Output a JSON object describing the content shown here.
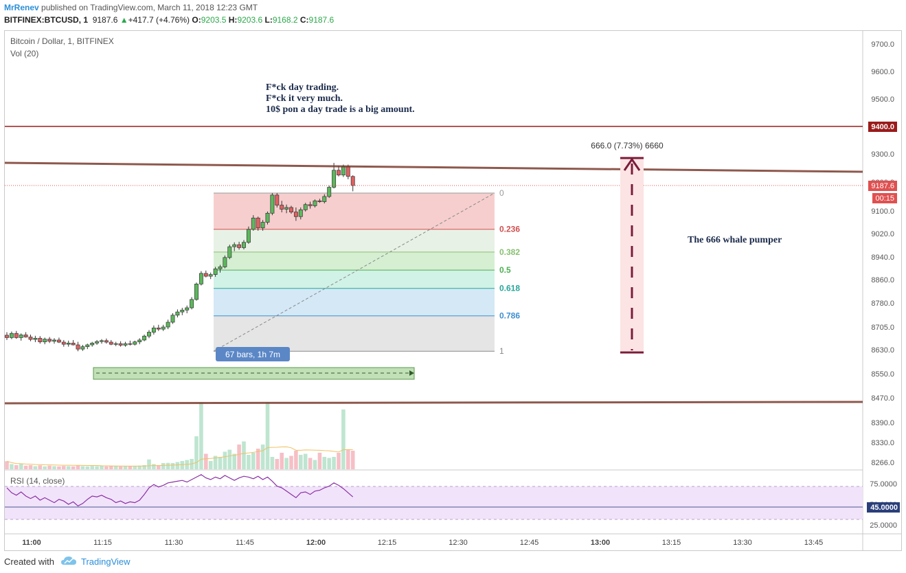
{
  "header": {
    "user": "MrRenev",
    "published": "published on TradingView.com, March 11, 2018 12:23 GMT",
    "symbol": "BITFINEX:BTCUSD, 1",
    "last": "9187.6",
    "arrow": "▲",
    "change": "+417.7 (+4.76%)",
    "o_label": "O:",
    "o_val": "9203.5",
    "h_label": "H:",
    "h_val": "9203.6",
    "l_label": "L:",
    "l_val": "9168.2",
    "c_label": "C:",
    "c_val": "9187.6"
  },
  "legend": {
    "title": "Bitcoin / Dollar, 1, BITFINEX",
    "vol": "Vol (20)",
    "rsi": "RSI (14, close)"
  },
  "annotations": {
    "note_lines": [
      "F*ck day trading.",
      "F*ck it very much.",
      "10$ pon a day trade is a big amount."
    ],
    "whale": "The 666 whale pumper",
    "measure": "666.0 (7.73%) 6660",
    "bars_range": "67 bars, 1h 7m"
  },
  "price_labels": {
    "resistance": "9400.0",
    "last": "9187.6",
    "countdown": "00:15",
    "rsi_value": "45.0000"
  },
  "fib": [
    {
      "level": "0",
      "color": "#999999"
    },
    {
      "level": "0.236",
      "color": "#d05050"
    },
    {
      "level": "0.382",
      "color": "#88c070"
    },
    {
      "level": "0.5",
      "color": "#4caf50"
    },
    {
      "level": "0.618",
      "color": "#26a69a"
    },
    {
      "level": "0.786",
      "color": "#3d8fd1"
    },
    {
      "level": "1",
      "color": "#888888"
    }
  ],
  "footer": {
    "created": "Created with",
    "brand": "TradingView"
  },
  "chart_data": {
    "type": "candlestick",
    "price_axis": {
      "ticks": [
        {
          "label": "9700.0",
          "v": 9700
        },
        {
          "label": "9600.0",
          "v": 9600
        },
        {
          "label": "9500.0",
          "v": 9500
        },
        {
          "label": "9300.0",
          "v": 9300
        },
        {
          "label": "9200.0",
          "v": 9200
        },
        {
          "label": "9100.0",
          "v": 9100
        },
        {
          "label": "9020.0",
          "v": 9020
        },
        {
          "label": "8940.0",
          "v": 8940
        },
        {
          "label": "8860.0",
          "v": 8860
        },
        {
          "label": "8780.0",
          "v": 8780
        },
        {
          "label": "8705.0",
          "v": 8705
        },
        {
          "label": "8630.0",
          "v": 8630
        },
        {
          "label": "8550.0",
          "v": 8550
        },
        {
          "label": "8470.0",
          "v": 8470
        },
        {
          "label": "8390.0",
          "v": 8390
        },
        {
          "label": "8330.0",
          "v": 8330
        },
        {
          "label": "8266.0",
          "v": 8266
        }
      ]
    },
    "rsi_axis": {
      "ticks": [
        {
          "label": "75.0000",
          "v": 75
        },
        {
          "label": "50.0000",
          "v": 50
        },
        {
          "label": "25.0000",
          "v": 25
        }
      ]
    },
    "time_axis": {
      "ticks": [
        {
          "label": "11:00",
          "t": 0,
          "bold": true
        },
        {
          "label": "11:15",
          "t": 15
        },
        {
          "label": "11:30",
          "t": 30
        },
        {
          "label": "11:45",
          "t": 45
        },
        {
          "label": "12:00",
          "t": 60,
          "bold": true
        },
        {
          "label": "12:15",
          "t": 75
        },
        {
          "label": "12:30",
          "t": 90
        },
        {
          "label": "12:45",
          "t": 105
        },
        {
          "label": "13:00",
          "t": 120,
          "bold": true
        },
        {
          "label": "13:15",
          "t": 135
        },
        {
          "label": "13:30",
          "t": 150
        },
        {
          "label": "13:45",
          "t": 165
        }
      ]
    },
    "candles": [
      [
        0,
        8678,
        8688,
        8662,
        8670
      ],
      [
        1,
        8670,
        8690,
        8665,
        8684
      ],
      [
        2,
        8684,
        8692,
        8666,
        8670
      ],
      [
        3,
        8670,
        8684,
        8660,
        8679
      ],
      [
        4,
        8679,
        8688,
        8670,
        8672
      ],
      [
        5,
        8672,
        8680,
        8658,
        8664
      ],
      [
        6,
        8664,
        8676,
        8655,
        8668
      ],
      [
        7,
        8668,
        8675,
        8650,
        8656
      ],
      [
        8,
        8656,
        8670,
        8648,
        8665
      ],
      [
        9,
        8665,
        8672,
        8652,
        8658
      ],
      [
        10,
        8658,
        8668,
        8650,
        8662
      ],
      [
        11,
        8662,
        8670,
        8652,
        8655
      ],
      [
        12,
        8655,
        8662,
        8640,
        8648
      ],
      [
        13,
        8648,
        8660,
        8640,
        8652
      ],
      [
        14,
        8652,
        8662,
        8644,
        8646
      ],
      [
        15,
        8646,
        8656,
        8625,
        8632
      ],
      [
        16,
        8632,
        8646,
        8626,
        8640
      ],
      [
        17,
        8640,
        8650,
        8632,
        8646
      ],
      [
        18,
        8646,
        8656,
        8640,
        8652
      ],
      [
        19,
        8652,
        8662,
        8646,
        8657
      ],
      [
        20,
        8657,
        8665,
        8650,
        8660
      ],
      [
        21,
        8660,
        8667,
        8650,
        8655
      ],
      [
        22,
        8655,
        8662,
        8645,
        8648
      ],
      [
        23,
        8648,
        8656,
        8642,
        8650
      ],
      [
        24,
        8650,
        8658,
        8640,
        8645
      ],
      [
        25,
        8645,
        8656,
        8640,
        8650
      ],
      [
        26,
        8650,
        8660,
        8644,
        8648
      ],
      [
        27,
        8648,
        8660,
        8644,
        8656
      ],
      [
        28,
        8656,
        8668,
        8648,
        8662
      ],
      [
        29,
        8662,
        8680,
        8658,
        8675
      ],
      [
        30,
        8675,
        8695,
        8668,
        8688
      ],
      [
        31,
        8688,
        8710,
        8680,
        8702
      ],
      [
        32,
        8702,
        8712,
        8692,
        8698
      ],
      [
        33,
        8698,
        8712,
        8692,
        8705
      ],
      [
        34,
        8705,
        8728,
        8698,
        8720
      ],
      [
        35,
        8720,
        8748,
        8715,
        8742
      ],
      [
        36,
        8742,
        8760,
        8735,
        8752
      ],
      [
        37,
        8752,
        8765,
        8742,
        8758
      ],
      [
        38,
        8758,
        8772,
        8748,
        8765
      ],
      [
        39,
        8765,
        8800,
        8760,
        8792
      ],
      [
        40,
        8792,
        8850,
        8788,
        8845
      ],
      [
        41,
        8845,
        8890,
        8840,
        8882
      ],
      [
        42,
        8882,
        8892,
        8868,
        8872
      ],
      [
        43,
        8872,
        8885,
        8862,
        8878
      ],
      [
        44,
        8878,
        8905,
        8870,
        8898
      ],
      [
        45,
        8898,
        8912,
        8885,
        8905
      ],
      [
        46,
        8905,
        8945,
        8900,
        8938
      ],
      [
        47,
        8938,
        8982,
        8932,
        8975
      ],
      [
        48,
        8975,
        8990,
        8960,
        8982
      ],
      [
        49,
        8982,
        8992,
        8965,
        8972
      ],
      [
        50,
        8972,
        8998,
        8966,
        8990
      ],
      [
        51,
        8990,
        9045,
        8985,
        9035
      ],
      [
        52,
        9035,
        9085,
        9030,
        9075
      ],
      [
        53,
        9075,
        9080,
        9030,
        9040
      ],
      [
        54,
        9040,
        9068,
        9030,
        9060
      ],
      [
        55,
        9060,
        9098,
        9052,
        9092
      ],
      [
        56,
        9092,
        9162,
        9085,
        9155
      ],
      [
        57,
        9155,
        9162,
        9112,
        9120
      ],
      [
        58,
        9120,
        9135,
        9095,
        9106
      ],
      [
        59,
        9106,
        9122,
        9092,
        9112
      ],
      [
        60,
        9112,
        9118,
        9090,
        9096
      ],
      [
        61,
        9096,
        9112,
        9065,
        9080
      ],
      [
        62,
        9080,
        9112,
        9070,
        9104
      ],
      [
        63,
        9104,
        9128,
        9098,
        9122
      ],
      [
        64,
        9122,
        9132,
        9108,
        9118
      ],
      [
        65,
        9118,
        9140,
        9112,
        9135
      ],
      [
        66,
        9135,
        9142,
        9128,
        9132
      ],
      [
        67,
        9132,
        9158,
        9126,
        9150
      ],
      [
        68,
        9150,
        9188,
        9145,
        9182
      ],
      [
        69,
        9182,
        9268,
        9178,
        9242
      ],
      [
        70,
        9242,
        9258,
        9220,
        9225
      ],
      [
        71,
        9225,
        9262,
        9218,
        9255
      ],
      [
        72,
        9255,
        9262,
        9210,
        9220
      ],
      [
        73,
        9220,
        9224,
        9168,
        9188
      ]
    ],
    "volume": [
      78,
      50,
      40,
      50,
      35,
      40,
      30,
      38,
      28,
      35,
      30,
      28,
      32,
      30,
      28,
      35,
      30,
      28,
      32,
      30,
      35,
      28,
      30,
      32,
      28,
      30,
      33,
      30,
      35,
      40,
      95,
      50,
      40,
      60,
      62,
      60,
      70,
      80,
      90,
      100,
      320,
      650,
      150,
      80,
      130,
      120,
      170,
      190,
      150,
      240,
      270,
      140,
      160,
      200,
      240,
      650,
      120,
      100,
      160,
      110,
      130,
      180,
      140,
      150,
      110,
      90,
      160,
      120,
      110,
      120,
      160,
      580,
      190,
      180
    ],
    "rsi": [
      70,
      64,
      61,
      65,
      60,
      57,
      60,
      55,
      58,
      55,
      52,
      56,
      54,
      50,
      53,
      48,
      51,
      56,
      60,
      59,
      61,
      58,
      56,
      52,
      54,
      51,
      53,
      52,
      55,
      62,
      70,
      74,
      71,
      73,
      76,
      77,
      78,
      79,
      77,
      80,
      83,
      86,
      82,
      80,
      83,
      81,
      85,
      82,
      79,
      82,
      84,
      83,
      81,
      84,
      80,
      83,
      78,
      72,
      70,
      66,
      62,
      58,
      64,
      65,
      62,
      66,
      67,
      70,
      72,
      76,
      73,
      69,
      64,
      59
    ],
    "rsi_ylim": [
      15,
      90
    ]
  }
}
